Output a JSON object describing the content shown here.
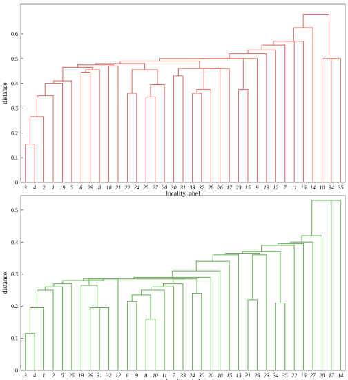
{
  "chart_data": [
    {
      "type": "dendrogram",
      "xlabel": "locality label",
      "ylabel": "distance",
      "ylim": [
        0,
        0.72
      ],
      "yticks": [
        0,
        0.1,
        0.2,
        0.3,
        0.4,
        0.5,
        0.6
      ],
      "ytick_labels": [
        "0",
        "0.1",
        "0.2",
        "0.3",
        "0.4",
        "0.5",
        "0.6"
      ],
      "line_color": "#d9665a",
      "leaves": [
        "3",
        "4",
        "2",
        "1",
        "19",
        "5",
        "6",
        "29",
        "8",
        "18",
        "21",
        "22",
        "24",
        "25",
        "27",
        "20",
        "30",
        "31",
        "33",
        "32",
        "28",
        "26",
        "17",
        "23",
        "15",
        "9",
        "13",
        "12",
        "7",
        "11",
        "16",
        "14",
        "10",
        "34",
        "35"
      ],
      "tree": [
        0.68,
        [
          0.625,
          [
            0.57,
            [
              0.57,
              [
                0.555,
                [
                  0.535,
                  [
                    0.52,
                    [
                      0.5,
                      [
                        0.5,
                        [
                          0.49,
                          [
                            0.48,
                            [
                              0.475,
                              [
                                0.465,
                                [
                                  0.41,
                                  [
                                    0.4,
                                    [
                                      0.35,
                                      [
                                        0.265,
                                        [
                                          0.155,
                                          "3",
                                          "4"
                                        ],
                                        "2"
                                      ],
                                      "1"
                                    ],
                                    "19"
                                  ],
                                  "5"
                                ],
                                [
                                  0.455,
                                  [
                                    0.445,
                                    "6",
                                    "29"
                                  ],
                                  "8"
                                ]
                              ],
                              [
                                0.47,
                                "18",
                                "21"
                              ]
                            ],
                            [
                              0.455,
                              [
                                0.36,
                                "22",
                                "24"
                              ],
                              [
                                0.395,
                                [
                                  0.345,
                                  "25",
                                  "27"
                                ],
                                "20"
                              ]
                            ]
                          ],
                          [
                            0.46,
                            [
                              0.43,
                              "30",
                              "31"
                            ],
                            [
                              0.46,
                              [
                                0.46,
                                [
                                  0.375,
                                  [
                                    0.36,
                                    "33",
                                    "32"
                                  ],
                                  "28"
                                ],
                                "26"
                              ],
                              "17"
                            ]
                          ]
                        ],
                        [
                          0.375,
                          "23",
                          "15"
                        ]
                      ],
                      "9"
                    ],
                    "13"
                  ],
                  "12"
                ],
                "7"
              ],
              "11"
            ],
            "16"
          ],
          "14"
        ],
        [
          0.5,
          "10",
          [
            0.5,
            "34",
            "35"
          ]
        ]
      ]
    },
    {
      "type": "dendrogram",
      "xlabel": "locality label",
      "ylabel": "distance",
      "ylim": [
        0,
        0.545
      ],
      "yticks": [
        0,
        0.1,
        0.2,
        0.3,
        0.4,
        0.5
      ],
      "ytick_labels": [
        "0",
        "0.1",
        "0.2",
        "0.3",
        "0.4",
        "0.5"
      ],
      "line_color": "#5fae4f",
      "leaves": [
        "3",
        "4",
        "1",
        "2",
        "5",
        "25",
        "19",
        "29",
        "31",
        "32",
        "12",
        "6",
        "9",
        "8",
        "10",
        "11",
        "7",
        "33",
        "24",
        "30",
        "20",
        "18",
        "15",
        "13",
        "21",
        "26",
        "23",
        "34",
        "35",
        "22",
        "16",
        "27",
        "28",
        "17",
        "14"
      ],
      "tree": [
        0.53,
        [
          0.42,
          [
            0.4,
            [
              0.395,
              [
                0.39,
                [
                  0.37,
                  [
                    0.365,
                    [
                      0.36,
                      [
                        0.34,
                        [
                          0.31,
                          [
                            0.29,
                            [
                              0.285,
                              [
                                0.28,
                                [
                                  0.27,
                                  [
                                    0.26,
                                    [
                                      0.25,
                                      [
                                        0.195,
                                        [
                                          0.115,
                                          "3",
                                          "4"
                                        ],
                                        "1"
                                      ],
                                      "2"
                                    ],
                                    "5"
                                  ],
                                  "25"
                                ],
                                [
                                  0.285,
                                  [
                                    0.265,
                                    "19",
                                    [
                                      0.195,
                                      "29",
                                      [
                                        0.195,
                                        "31",
                                        "32"
                                      ]
                                    ]
                                  ],
                                  "12"
                                ]
                              ],
                              [
                                0.285,
                                [
                                  0.27,
                                  [
                                    0.26,
                                    [
                                      0.25,
                                      [
                                        0.235,
                                        [
                                          0.215,
                                          "6",
                                          "9"
                                        ],
                                        [
                                          0.16,
                                          "8",
                                          "10"
                                        ]
                                      ],
                                      "11"
                                    ],
                                    "7"
                                  ],
                                  "33"
                                ],
                                [
                                  0.24,
                                  "24",
                                  "30"
                                ]
                              ]
                            ],
                            "20"
                          ],
                          "18"
                        ],
                        "15"
                      ],
                      "13"
                    ],
                    [
                      0.36,
                      [
                        0.22,
                        "21",
                        "26"
                      ],
                      "23"
                    ]
                  ],
                  [
                    0.21,
                    "34",
                    "35"
                  ]
                ],
                "22"
              ],
              "16"
            ],
            "27"
          ],
          "28"
        ],
        [
          0.53,
          "17",
          "14"
        ]
      ]
    }
  ]
}
